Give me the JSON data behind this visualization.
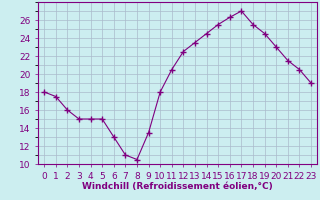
{
  "hours": [
    0,
    1,
    2,
    3,
    4,
    5,
    6,
    7,
    8,
    9,
    10,
    11,
    12,
    13,
    14,
    15,
    16,
    17,
    18,
    19,
    20,
    21,
    22,
    23
  ],
  "values": [
    18.0,
    17.5,
    16.0,
    15.0,
    15.0,
    15.0,
    13.0,
    11.0,
    10.5,
    13.5,
    18.0,
    20.5,
    22.5,
    23.5,
    24.5,
    25.5,
    26.3,
    27.0,
    25.5,
    24.5,
    23.0,
    21.5,
    20.5,
    19.0
  ],
  "line_color": "#800080",
  "marker": "+",
  "marker_size": 4,
  "background_color": "#cceef0",
  "grid_color": "#aabbcc",
  "xlabel": "Windchill (Refroidissement éolien,°C)",
  "ylim": [
    10,
    28
  ],
  "yticks": [
    10,
    12,
    14,
    16,
    18,
    20,
    22,
    24,
    26
  ],
  "xlim": [
    -0.5,
    23.5
  ],
  "tick_color": "#800080",
  "label_color": "#800080",
  "font_size_label": 6.5,
  "font_size_tick": 6.5,
  "minor_grid_color": "#bbdddd",
  "grid_major_every": 2
}
